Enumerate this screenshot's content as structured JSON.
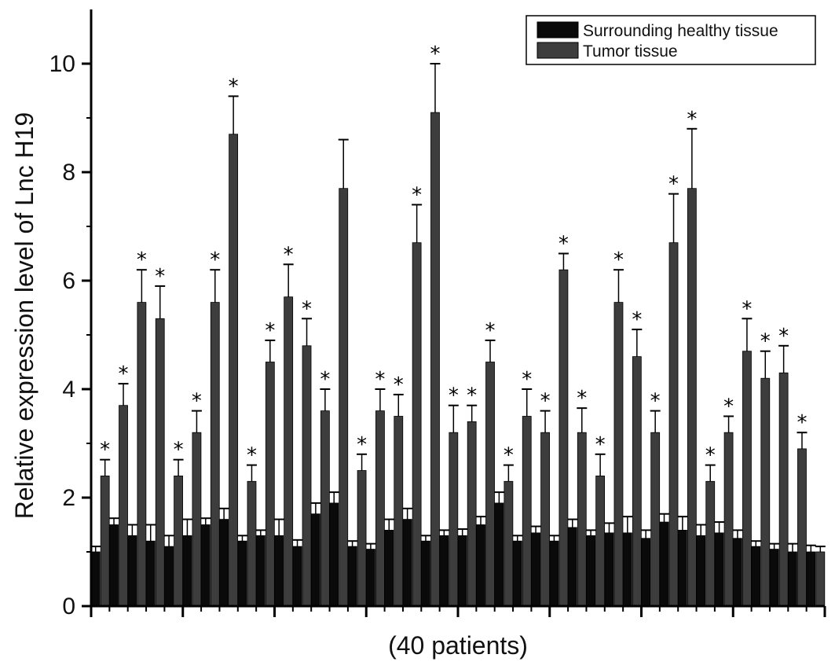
{
  "chart_data": {
    "type": "bar",
    "title": "",
    "xlabel": "(40 patients)",
    "ylabel": "Relative expression level of Lnc H19",
    "ylim": [
      0,
      11
    ],
    "yticks": [
      0,
      2,
      4,
      6,
      8,
      10
    ],
    "legend_position": "top-right",
    "significance_marker": "*",
    "colors": {
      "healthy": "#0a0a0a",
      "tumor": "#3d3d3d"
    },
    "series": [
      {
        "name": "Surrounding healthy tissue",
        "values": [
          1.0,
          1.5,
          1.3,
          1.2,
          1.1,
          1.3,
          1.5,
          1.6,
          1.2,
          1.3,
          1.3,
          1.1,
          1.7,
          1.9,
          1.1,
          1.05,
          1.4,
          1.6,
          1.2,
          1.3,
          1.3,
          1.5,
          1.9,
          1.2,
          1.35,
          1.2,
          1.45,
          1.3,
          1.35,
          1.35,
          1.25,
          1.55,
          1.4,
          1.3,
          1.35,
          1.25,
          1.1,
          1.05,
          1.0,
          1.0
        ],
        "errors": [
          0.1,
          0.12,
          0.2,
          0.3,
          0.2,
          0.3,
          0.12,
          0.2,
          0.1,
          0.1,
          0.3,
          0.12,
          0.2,
          0.2,
          0.1,
          0.1,
          0.2,
          0.2,
          0.1,
          0.1,
          0.12,
          0.15,
          0.2,
          0.1,
          0.12,
          0.1,
          0.15,
          0.1,
          0.18,
          0.3,
          0.15,
          0.15,
          0.25,
          0.2,
          0.2,
          0.15,
          0.1,
          0.1,
          0.15,
          0.12
        ]
      },
      {
        "name": "Tumor tissue",
        "values": [
          2.4,
          3.7,
          5.6,
          5.3,
          2.4,
          3.2,
          5.6,
          8.7,
          2.3,
          4.5,
          5.7,
          4.8,
          3.6,
          7.7,
          2.5,
          3.6,
          3.5,
          6.7,
          9.1,
          3.2,
          3.4,
          4.5,
          2.3,
          3.5,
          3.2,
          6.2,
          3.2,
          2.4,
          5.6,
          4.6,
          3.2,
          6.7,
          7.7,
          2.3,
          3.2,
          4.7,
          4.2,
          4.3,
          2.9,
          1.0
        ],
        "errors": [
          0.3,
          0.4,
          0.6,
          0.6,
          0.3,
          0.4,
          0.6,
          0.7,
          0.3,
          0.4,
          0.6,
          0.5,
          0.4,
          0.9,
          0.3,
          0.4,
          0.4,
          0.7,
          0.9,
          0.5,
          0.3,
          0.4,
          0.3,
          0.5,
          0.4,
          0.3,
          0.45,
          0.4,
          0.6,
          0.5,
          0.4,
          0.9,
          1.1,
          0.3,
          0.3,
          0.6,
          0.5,
          0.5,
          0.3,
          0.1
        ],
        "significant": [
          true,
          true,
          true,
          true,
          true,
          true,
          true,
          true,
          true,
          true,
          true,
          true,
          true,
          false,
          true,
          true,
          true,
          true,
          true,
          true,
          true,
          true,
          true,
          true,
          true,
          true,
          true,
          true,
          true,
          true,
          true,
          true,
          true,
          true,
          true,
          true,
          true,
          true,
          true,
          false
        ]
      }
    ]
  }
}
